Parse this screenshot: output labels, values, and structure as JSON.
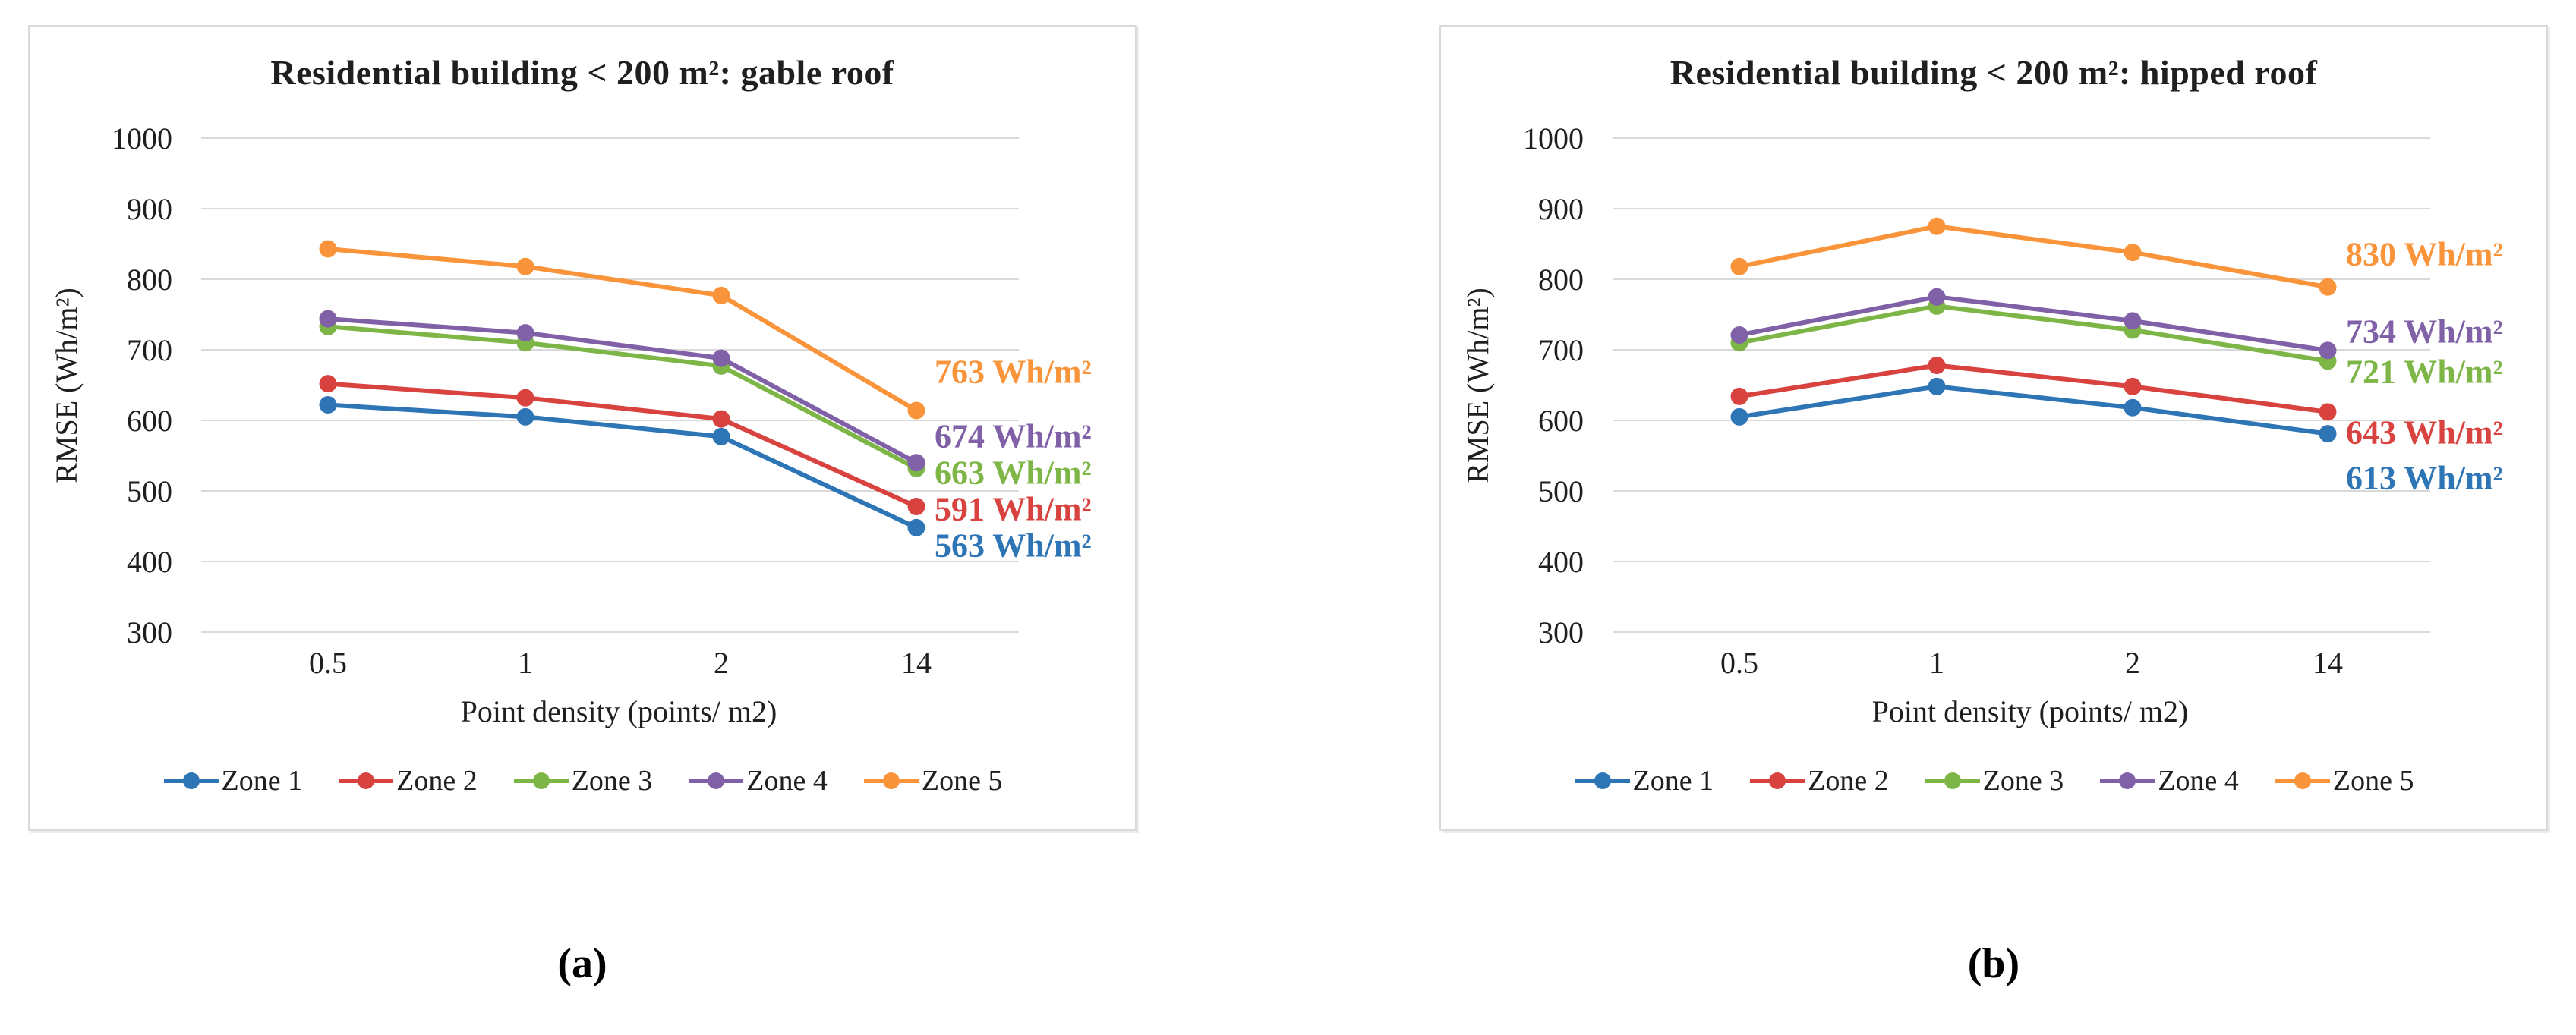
{
  "figure": {
    "captions": [
      "(a)",
      "(b)"
    ]
  },
  "style": {
    "grid_color": "#D9D9D9",
    "panel_border_color": "#D9D9D9",
    "text_color": "#1f1f1f"
  },
  "chart_data": [
    {
      "type": "line",
      "title": "Residential building < 200 m²: gable roof",
      "xlabel": "Point density (points/ m2)",
      "ylabel": "RMSE (Wh/m²)",
      "categories": [
        "0.5",
        "1",
        "2",
        "14"
      ],
      "ylim": [
        300,
        1000
      ],
      "ytick_step": 100,
      "grid": true,
      "legend_position": "bottom",
      "series": [
        {
          "name": "Zone 1",
          "color": "#2E75B6",
          "values": [
            622,
            605,
            577,
            448
          ],
          "end_label": "563 Wh/m²"
        },
        {
          "name": "Zone 2",
          "color": "#D8423F",
          "values": [
            652,
            632,
            602,
            478
          ],
          "end_label": "591 Wh/m²"
        },
        {
          "name": "Zone 3",
          "color": "#7DB646",
          "values": [
            733,
            710,
            677,
            532
          ],
          "end_label": "663 Wh/m²"
        },
        {
          "name": "Zone 4",
          "color": "#8061A8",
          "values": [
            744,
            724,
            688,
            540
          ],
          "end_label": "674 Wh/m²"
        },
        {
          "name": "Zone 5",
          "color": "#F9943B",
          "values": [
            843,
            818,
            777,
            614
          ],
          "end_label": "763 Wh/m²"
        }
      ]
    },
    {
      "type": "line",
      "title": "Residential building < 200 m²: hipped roof",
      "xlabel": "Point density (points/ m2)",
      "ylabel": "RMSE (Wh/m²)",
      "categories": [
        "0.5",
        "1",
        "2",
        "14"
      ],
      "ylim": [
        300,
        1000
      ],
      "ytick_step": 100,
      "grid": true,
      "legend_position": "bottom",
      "series": [
        {
          "name": "Zone 1",
          "color": "#2E75B6",
          "values": [
            605,
            648,
            618,
            581
          ],
          "end_label": "613 Wh/m²"
        },
        {
          "name": "Zone 2",
          "color": "#D8423F",
          "values": [
            634,
            678,
            648,
            612
          ],
          "end_label": "643 Wh/m²"
        },
        {
          "name": "Zone 3",
          "color": "#7DB646",
          "values": [
            710,
            762,
            728,
            684
          ],
          "end_label": "721 Wh/m²"
        },
        {
          "name": "Zone 4",
          "color": "#8061A8",
          "values": [
            721,
            775,
            741,
            699
          ],
          "end_label": "734 Wh/m²"
        },
        {
          "name": "Zone 5",
          "color": "#F9943B",
          "values": [
            818,
            875,
            838,
            789
          ],
          "end_label": "830 Wh/m²"
        }
      ]
    }
  ]
}
